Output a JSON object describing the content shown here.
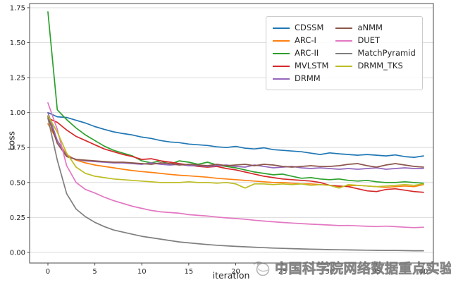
{
  "chart_data": {
    "type": "line",
    "title": "",
    "xlabel": "iteration",
    "ylabel": "Loss",
    "x": [
      0,
      1,
      2,
      3,
      4,
      5,
      6,
      7,
      8,
      9,
      10,
      11,
      12,
      13,
      14,
      15,
      16,
      17,
      18,
      19,
      20,
      21,
      22,
      23,
      24,
      25,
      26,
      27,
      28,
      29,
      30,
      31,
      32,
      33,
      34,
      35,
      36,
      37,
      38,
      39,
      40
    ],
    "xticks": [
      0,
      5,
      10,
      15,
      20,
      25,
      30,
      35,
      40
    ],
    "yticks": [
      0.0,
      0.25,
      0.5,
      0.75,
      1.0,
      1.25,
      1.5,
      1.75
    ],
    "xlim": [
      -1.95,
      41.05
    ],
    "ylim": [
      -0.076,
      1.78
    ],
    "grid": "horizontal",
    "grid_color": "#dcdcdc",
    "spine_color": "#4a4a4a",
    "tick_label_color": "#262626",
    "legend_position": "upper-right, 2 columns",
    "series": [
      {
        "name": "CDSSM",
        "color": "#1f77b4",
        "values": [
          1.0,
          0.97,
          0.965,
          0.945,
          0.925,
          0.9,
          0.88,
          0.862,
          0.85,
          0.84,
          0.825,
          0.815,
          0.8,
          0.79,
          0.785,
          0.775,
          0.77,
          0.765,
          0.755,
          0.75,
          0.758,
          0.745,
          0.74,
          0.748,
          0.735,
          0.73,
          0.725,
          0.72,
          0.71,
          0.7,
          0.712,
          0.705,
          0.7,
          0.695,
          0.7,
          0.695,
          0.69,
          0.697,
          0.685,
          0.68,
          0.69
        ]
      },
      {
        "name": "ARC-I",
        "color": "#ff7f0e",
        "values": [
          0.92,
          0.8,
          0.7,
          0.66,
          0.64,
          0.625,
          0.615,
          0.605,
          0.595,
          0.585,
          0.578,
          0.572,
          0.565,
          0.558,
          0.552,
          0.548,
          0.543,
          0.538,
          0.53,
          0.525,
          0.52,
          0.515,
          0.51,
          0.505,
          0.5,
          0.5,
          0.495,
          0.49,
          0.49,
          0.485,
          0.48,
          0.47,
          0.475,
          0.48,
          0.475,
          0.47,
          0.465,
          0.47,
          0.475,
          0.47,
          0.485
        ]
      },
      {
        "name": "ARC-II",
        "color": "#2ca02c",
        "values": [
          1.72,
          1.02,
          0.95,
          0.89,
          0.84,
          0.8,
          0.76,
          0.73,
          0.71,
          0.69,
          0.655,
          0.64,
          0.655,
          0.63,
          0.655,
          0.645,
          0.63,
          0.645,
          0.625,
          0.615,
          0.605,
          0.59,
          0.575,
          0.565,
          0.555,
          0.56,
          0.545,
          0.53,
          0.535,
          0.525,
          0.52,
          0.525,
          0.515,
          0.51,
          0.515,
          0.505,
          0.5,
          0.5,
          0.505,
          0.5,
          0.495
        ]
      },
      {
        "name": "MVLSTM",
        "color": "#d62728",
        "values": [
          0.96,
          0.93,
          0.875,
          0.83,
          0.8,
          0.77,
          0.74,
          0.72,
          0.7,
          0.685,
          0.665,
          0.67,
          0.655,
          0.645,
          0.635,
          0.625,
          0.615,
          0.61,
          0.615,
          0.6,
          0.59,
          0.575,
          0.56,
          0.545,
          0.535,
          0.525,
          0.52,
          0.515,
          0.51,
          0.5,
          0.48,
          0.475,
          0.47,
          0.455,
          0.44,
          0.435,
          0.45,
          0.455,
          0.445,
          0.435,
          0.43
        ]
      },
      {
        "name": "DRMM",
        "color": "#9467bd",
        "values": [
          1.0,
          0.8,
          0.69,
          0.665,
          0.655,
          0.65,
          0.645,
          0.64,
          0.64,
          0.635,
          0.63,
          0.64,
          0.63,
          0.625,
          0.63,
          0.62,
          0.62,
          0.615,
          0.62,
          0.625,
          0.615,
          0.61,
          0.625,
          0.615,
          0.605,
          0.61,
          0.615,
          0.605,
          0.6,
          0.605,
          0.6,
          0.595,
          0.6,
          0.595,
          0.6,
          0.605,
          0.595,
          0.6,
          0.605,
          0.6,
          0.6
        ]
      },
      {
        "name": "aNMM",
        "color": "#8c564b",
        "values": [
          0.97,
          0.78,
          0.685,
          0.665,
          0.66,
          0.655,
          0.65,
          0.645,
          0.645,
          0.64,
          0.635,
          0.63,
          0.64,
          0.635,
          0.625,
          0.63,
          0.625,
          0.62,
          0.63,
          0.62,
          0.625,
          0.63,
          0.62,
          0.63,
          0.625,
          0.615,
          0.61,
          0.615,
          0.62,
          0.615,
          0.615,
          0.62,
          0.63,
          0.635,
          0.62,
          0.61,
          0.625,
          0.635,
          0.625,
          0.615,
          0.61
        ]
      },
      {
        "name": "DUET",
        "color": "#e377c2",
        "values": [
          1.07,
          0.88,
          0.62,
          0.5,
          0.45,
          0.425,
          0.395,
          0.37,
          0.35,
          0.33,
          0.315,
          0.3,
          0.29,
          0.285,
          0.28,
          0.27,
          0.265,
          0.26,
          0.253,
          0.247,
          0.242,
          0.237,
          0.23,
          0.224,
          0.219,
          0.214,
          0.21,
          0.206,
          0.202,
          0.199,
          0.196,
          0.192,
          0.193,
          0.19,
          0.187,
          0.185,
          0.188,
          0.184,
          0.18,
          0.177,
          0.18
        ]
      },
      {
        "name": "MatchPyramid",
        "color": "#7f7f7f",
        "values": [
          0.96,
          0.66,
          0.42,
          0.31,
          0.255,
          0.215,
          0.185,
          0.16,
          0.145,
          0.13,
          0.115,
          0.105,
          0.095,
          0.085,
          0.075,
          0.068,
          0.062,
          0.056,
          0.051,
          0.047,
          0.043,
          0.04,
          0.037,
          0.034,
          0.031,
          0.029,
          0.027,
          0.025,
          0.023,
          0.022,
          0.02,
          0.019,
          0.018,
          0.017,
          0.016,
          0.015,
          0.014,
          0.014,
          0.013,
          0.012,
          0.012
        ]
      },
      {
        "name": "DRMM_TKS",
        "color": "#bcbd22",
        "values": [
          0.98,
          0.86,
          0.71,
          0.61,
          0.565,
          0.545,
          0.535,
          0.525,
          0.52,
          0.515,
          0.51,
          0.505,
          0.5,
          0.5,
          0.5,
          0.505,
          0.5,
          0.5,
          0.495,
          0.5,
          0.49,
          0.46,
          0.49,
          0.49,
          0.485,
          0.49,
          0.485,
          0.49,
          0.48,
          0.485,
          0.48,
          0.46,
          0.485,
          0.48,
          0.475,
          0.47,
          0.475,
          0.48,
          0.485,
          0.48,
          0.49
        ]
      }
    ]
  },
  "watermark": {
    "text": "中国科学院网络数据重点实验室",
    "logo": "swirl-circle-logo"
  }
}
